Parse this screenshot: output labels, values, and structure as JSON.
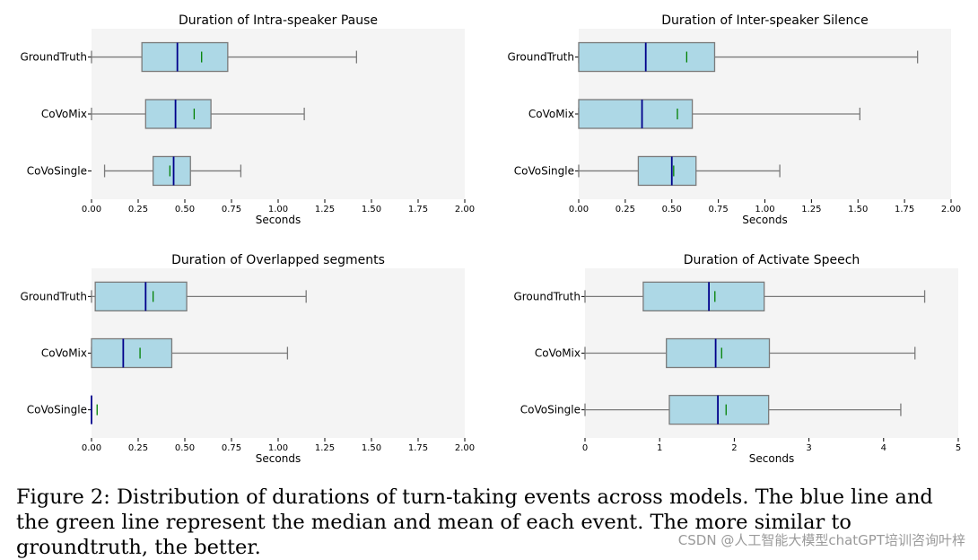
{
  "chart_data": [
    {
      "type": "boxplot",
      "orientation": "horizontal",
      "title": "Duration of Intra-speaker Pause",
      "xlabel": "Seconds",
      "xlim": [
        0,
        2
      ],
      "xticks": [
        "0.00",
        "0.25",
        "0.50",
        "0.75",
        "1.00",
        "1.25",
        "1.50",
        "1.75",
        "2.00"
      ],
      "categories": [
        "GroundTruth",
        "CoVoMix",
        "CoVoSingle"
      ],
      "boxes": [
        {
          "label": "GroundTruth",
          "whisker_low": 0.0,
          "q1": 0.27,
          "median": 0.46,
          "q3": 0.73,
          "whisker_high": 1.42,
          "mean": 0.59
        },
        {
          "label": "CoVoMix",
          "whisker_low": 0.0,
          "q1": 0.29,
          "median": 0.45,
          "q3": 0.64,
          "whisker_high": 1.14,
          "mean": 0.55
        },
        {
          "label": "CoVoSingle",
          "whisker_low": 0.07,
          "q1": 0.33,
          "median": 0.44,
          "q3": 0.53,
          "whisker_high": 0.8,
          "mean": 0.42
        }
      ]
    },
    {
      "type": "boxplot",
      "orientation": "horizontal",
      "title": "Duration of Inter-speaker Silence",
      "xlabel": "Seconds",
      "xlim": [
        0,
        2
      ],
      "xticks": [
        "0.00",
        "0.25",
        "0.50",
        "0.75",
        "1.00",
        "1.25",
        "1.50",
        "1.75",
        "2.00"
      ],
      "categories": [
        "GroundTruth",
        "CoVoMix",
        "CoVoSingle"
      ],
      "boxes": [
        {
          "label": "GroundTruth",
          "whisker_low": 0.0,
          "q1": 0.0,
          "median": 0.36,
          "q3": 0.73,
          "whisker_high": 1.82,
          "mean": 0.58
        },
        {
          "label": "CoVoMix",
          "whisker_low": 0.0,
          "q1": 0.0,
          "median": 0.34,
          "q3": 0.61,
          "whisker_high": 1.51,
          "mean": 0.53
        },
        {
          "label": "CoVoSingle",
          "whisker_low": 0.0,
          "q1": 0.32,
          "median": 0.5,
          "q3": 0.63,
          "whisker_high": 1.08,
          "mean": 0.51
        }
      ]
    },
    {
      "type": "boxplot",
      "orientation": "horizontal",
      "title": "Duration of Overlapped segments",
      "xlabel": "Seconds",
      "xlim": [
        0,
        2
      ],
      "xticks": [
        "0.00",
        "0.25",
        "0.50",
        "0.75",
        "1.00",
        "1.25",
        "1.50",
        "1.75",
        "2.00"
      ],
      "categories": [
        "GroundTruth",
        "CoVoMix",
        "CoVoSingle"
      ],
      "boxes": [
        {
          "label": "GroundTruth",
          "whisker_low": 0.0,
          "q1": 0.02,
          "median": 0.29,
          "q3": 0.51,
          "whisker_high": 1.15,
          "mean": 0.33
        },
        {
          "label": "CoVoMix",
          "whisker_low": 0.0,
          "q1": 0.0,
          "median": 0.17,
          "q3": 0.43,
          "whisker_high": 1.05,
          "mean": 0.26
        },
        {
          "label": "CoVoSingle",
          "whisker_low": 0.0,
          "q1": 0.0,
          "median": 0.0,
          "q3": 0.0,
          "whisker_high": 0.0,
          "mean": 0.03
        }
      ]
    },
    {
      "type": "boxplot",
      "orientation": "horizontal",
      "title": "Duration of Activate Speech",
      "xlabel": "Seconds",
      "xlim": [
        0,
        5
      ],
      "xticks": [
        "0",
        "1",
        "2",
        "3",
        "4",
        "5"
      ],
      "categories": [
        "GroundTruth",
        "CoVoMix",
        "CoVoSingle"
      ],
      "boxes": [
        {
          "label": "GroundTruth",
          "whisker_low": 0.0,
          "q1": 0.78,
          "median": 1.66,
          "q3": 2.4,
          "whisker_high": 4.55,
          "mean": 1.74
        },
        {
          "label": "CoVoMix",
          "whisker_low": 0.0,
          "q1": 1.09,
          "median": 1.75,
          "q3": 2.47,
          "whisker_high": 4.42,
          "mean": 1.83
        },
        {
          "label": "CoVoSingle",
          "whisker_low": 0.0,
          "q1": 1.13,
          "median": 1.78,
          "q3": 2.46,
          "whisker_high": 4.23,
          "mean": 1.89
        }
      ]
    }
  ],
  "colors": {
    "panel_bg": "#f4f4f4",
    "box_fill": "#add8e6",
    "box_edge": "#7a7a7a",
    "median": "#00008b",
    "mean": "#008000",
    "axis": "#000000"
  },
  "caption": "Figure 2: Distribution of durations of turn-taking events across models. The blue line and the green line represent the median and mean of each event. The more similar to groundtruth, the better.",
  "watermark": "CSDN @人工智能大模型chatGPT培训咨询叶梓"
}
